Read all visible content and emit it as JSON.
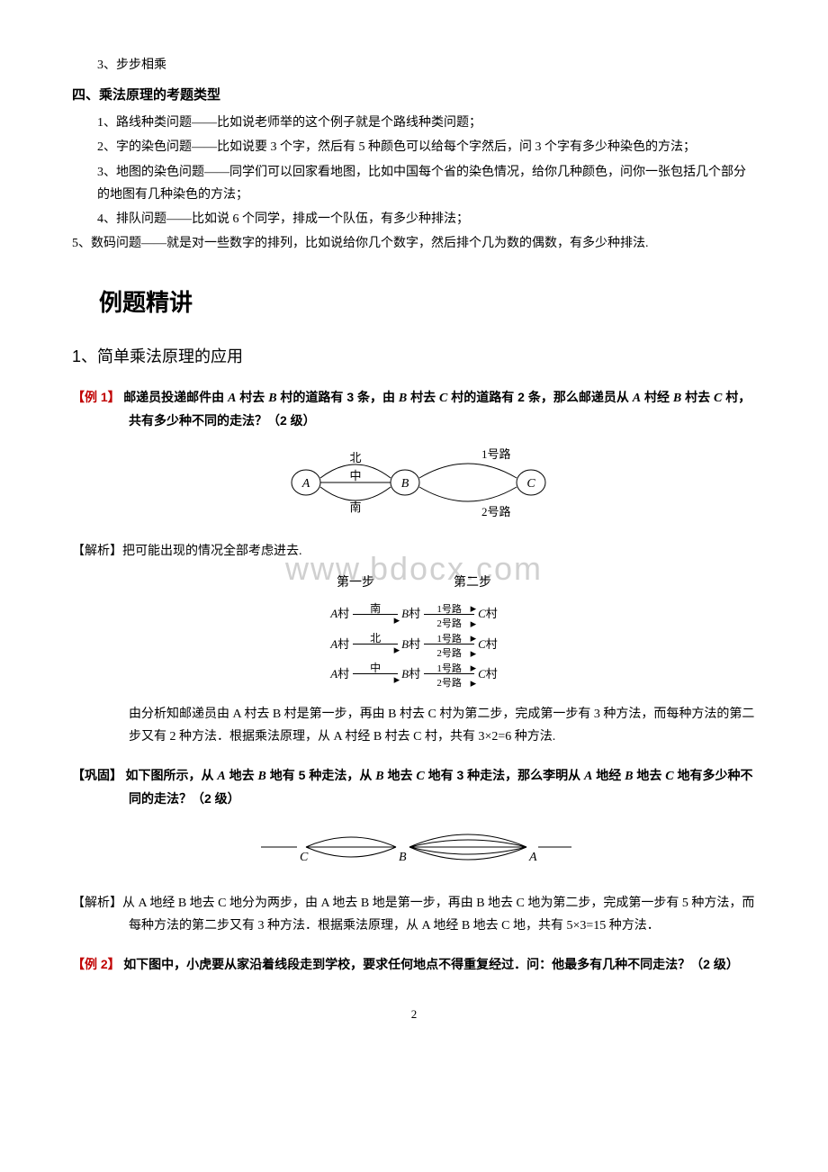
{
  "watermark": "www.bdocx.com",
  "top_item": "3、步步相乘",
  "section4": {
    "title": "四、乘法原理的考题类型",
    "items": [
      "1、路线种类问题——比如说老师举的这个例子就是个路线种类问题；",
      "2、字的染色问题——比如说要 3 个字，然后有 5 种颜色可以给每个字然后，问 3 个字有多少种染色的方法；",
      "3、地图的染色问题——同学们可以回家看地图，比如中国每个省的染色情况，给你几种颜色，问你一张包括几个部分的地图有几种染色的方法；",
      "4、排队问题——比如说 6 个同学，排成一个队伍，有多少种排法；",
      "5、数码问题——就是对一些数字的排列，比如说给你几个数字，然后排个几为数的偶数，有多少种排法."
    ]
  },
  "main_section": "例题精讲",
  "sub1": "1、简单乘法原理的应用",
  "ex1": {
    "label": "【例 1】",
    "body": "邮递员投递邮件由 A 村去 B 村的道路有 3 条，由 B 村去 C 村的道路有 2 条，那么邮递员从 A 村经 B 村去 C 村，共有多少种不同的走法？（2 级）",
    "diagram1": {
      "nodes": [
        "A",
        "B",
        "C"
      ],
      "edges_ab": [
        "北",
        "中",
        "南"
      ],
      "edges_bc": [
        "1号路",
        "2号路"
      ]
    },
    "analysis_label": "【解析】",
    "analysis_intro": "把可能出现的情况全部考虑进去.",
    "step_labels": [
      "第一步",
      "第二步"
    ],
    "rows": [
      {
        "from": "A 村",
        "mid_label": "南",
        "mid": "B 村",
        "r1": "1号路",
        "r2": "2号路",
        "to": "C 村"
      },
      {
        "from": "A 村",
        "mid_label": "北",
        "mid": "B 村",
        "r1": "1号路",
        "r2": "2号路",
        "to": "C 村"
      },
      {
        "from": "A 村",
        "mid_label": "中",
        "mid": "B 村",
        "r1": "1号路",
        "r2": "2号路",
        "to": "C 村"
      }
    ],
    "conclusion": "由分析知邮递员由 A 村去 B 村是第一步，再由 B 村去 C 村为第二步，完成第一步有 3 种方法，而每种方法的第二步又有 2 种方法．根据乘法原理，从 A 村经 B 村去 C 村，共有 3×2=6 种方法."
  },
  "con1": {
    "label": "【巩固】",
    "body": "如下图所示，从 A 地去 B 地有 5 种走法，从 B 地去 C 地有 3 种走法，那么李明从 A 地经 B 地去 C 地有多少种不同的走法？（2 级）",
    "diagram": {
      "nodes": [
        "C",
        "B",
        "A"
      ],
      "left_edges": 3,
      "right_edges": 5
    },
    "analysis_label": "【解析】",
    "analysis": "从 A 地经 B 地去 C 地分为两步，由 A 地去 B 地是第一步，再由 B 地去 C 地为第二步，完成第一步有 5 种方法，而每种方法的第二步又有 3 种方法．根据乘法原理，从 A 地经 B 地去 C 地，共有 5×3=15 种方法．"
  },
  "ex2": {
    "label": "【例 2】",
    "body": "如下图中，小虎要从家沿着线段走到学校，要求任何地点不得重复经过．问：他最多有几种不同走法？（2 级）"
  },
  "page": "2"
}
